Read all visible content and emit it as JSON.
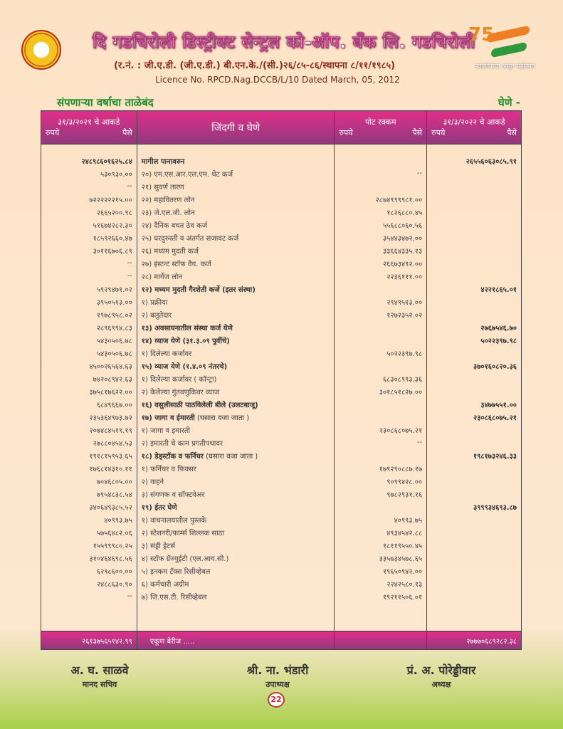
{
  "header": {
    "title": "दि गडचिरोली डिस्ट्रीक्ट सेन्ट्रल को-ऑप. बँक लि. गडचिरोली",
    "registration": "(र.नं. : जी.ए.डी. (जी.ए.डी.) बी.एन.के./(सी.)२६/८५-८६/स्थापना ८/११/१९८५)",
    "licence": "Licence No. RPCD.Nag.DCCB/L/10 Dated March, 05, 2012",
    "emblem_number": "75",
    "emblem_text": "स्वातंत्र्याचा अमृत महोत्सव"
  },
  "section": {
    "title": "संपणाऱ्या वर्षाचा ताळेबंद",
    "side": "घेणे -"
  },
  "columns": {
    "prev_year": "३१/३/२०२१ चे आकडे",
    "particulars": "जिंदगी व घेणे",
    "sub_amount": "पोट रक्कम",
    "cur_year": "३१/३/२०२२ चे आकडे",
    "rupees": "रुपये",
    "paise": "पैसे"
  },
  "rows": [
    {
      "prev": "२४८९८६०१६२५.८४",
      "desc": "मागील पानावरुन",
      "bold": true,
      "sub": "",
      "cur": "२६५५६०६३०८५.९१"
    },
    {
      "prev": "५३०९३०.००",
      "desc": "२०) एम.एस.आर.एल.एम. थेट कर्ज",
      "sub": "--",
      "cur": ""
    },
    {
      "prev": "--",
      "desc": "२१) सुवर्ण तारण",
      "sub": "",
      "cur": ""
    },
    {
      "prev": "७२२२२२२१५.००",
      "desc": "२२) महावितरण लोन",
      "sub": "२८७४९९९९८१.००",
      "cur": ""
    },
    {
      "prev": "२६६५२००.९८",
      "desc": "२३) जे.एल.जी. लोन",
      "sub": "१८२६८८०.४५",
      "cur": ""
    },
    {
      "prev": "५१६७४२८२.३०",
      "desc": "२४) दैनिक बचत ठेव कर्ज",
      "sub": "५५६८८०६०.५६",
      "cur": ""
    },
    {
      "prev": "१८५९२६६०.४७",
      "desc": "२५) घरदुरुस्ती व अंतर्गत सजावट कर्ज",
      "sub": "३५४४३४७२.००",
      "cur": ""
    },
    {
      "prev": "३०११६७०६.८९",
      "desc": "२६) मध्यम मुदती  कर्ज",
      "sub": "३३६६४३३५.१३",
      "cur": ""
    },
    {
      "prev": "--",
      "desc": "२७) इंस्टन्ट स्टॉफ वैय. कर्ज",
      "sub": "२६६७३४९२.००",
      "cur": ""
    },
    {
      "prev": "--",
      "desc": "२८) मार्गेज लोन",
      "sub": "२२३६१११.००",
      "cur": ""
    },
    {
      "prev": "५९२९४७१.०२",
      "desc": "१२) मध्यम मुदती गैरशेती कर्जे (इतर संस्था)",
      "bold": true,
      "sub": "",
      "cur": "४२२१८६५.०१"
    },
    {
      "prev": "३९५०५१३.००",
      "desc": "१) प्रक्रीया",
      "sub": "२९४९५१३.००",
      "cur": ""
    },
    {
      "prev": "१९७८९५८.०२",
      "desc": "२) बलुतेदार",
      "sub": "१२७२३५२.०२",
      "cur": ""
    },
    {
      "prev": "२८९६९९४.८३",
      "desc": "१३)  अवसायनातील संस्था कर्ज येणे",
      "bold": true,
      "sub": "",
      "cur": "२७६७५४६.७०"
    },
    {
      "prev": "५४३०५०६.७८",
      "desc": "१४) व्याज येणे (३१.३.०९ पुर्वीचे)",
      "bold": true,
      "sub": "",
      "cur": "५०२२३९७.९८"
    },
    {
      "prev": "५४३०५०६.७८",
      "desc": "१) दिलेल्या कर्जावर",
      "sub": "५०२२३९७.९८",
      "cur": ""
    },
    {
      "prev": "४५००२६५६४.६३",
      "desc": "१५) व्याज येणे  (१.४.०९ नंतरचे)",
      "bold": true,
      "sub": "",
      "cur": "३७०१६०८२०.३६"
    },
    {
      "prev": "७४२०८९४२.६३",
      "desc": "१) दिलेल्या कर्जावर ( कॉन्ट्रा)",
      "sub": "६८३०८९९३.३६",
      "cur": ""
    },
    {
      "prev": "३७५८१७६२२.००",
      "desc": "२) केलेल्या गुंतवणुकिवर व्याज",
      "sub": "३०१८५१८२७.००",
      "cur": ""
    },
    {
      "prev": "६८४९६६७.००",
      "desc": "१६) वसुलीसाठी पाठविलेली बीले (उलटबाजू)",
      "bold": true,
      "sub": "",
      "cur": "३४७७५५१.००"
    },
    {
      "prev": "२३५३६४९७३.७२",
      "desc": "१७) जागा व ईमारती",
      "note": " (घसारा वजा जाता )",
      "bold": true,
      "sub": "",
      "cur": "२३०८६८०७५.२१"
    },
    {
      "prev": "२०७४८४५१९.१९",
      "desc": "१) जागा व इमारती",
      "sub": "२३०८६८०७५.२१",
      "cur": ""
    },
    {
      "prev": "२७८८०४५४.५३",
      "desc": "२) इमारती चे काम प्रगतीपथावर",
      "sub": "--",
      "cur": ""
    },
    {
      "prev": "१९१८१५९५३.६५",
      "desc": "१८) डेड्स्टॉक व फर्निचर",
      "note": " (घसारा वजा जाता )",
      "bold": true,
      "sub": "",
      "cur": "१९८१७३२४६.३३"
    },
    {
      "prev": "१७६८१४३१०.११",
      "desc": "१) फर्निचर व फिक्सर",
      "sub": "१७९२९०८८७.१७",
      "cur": ""
    },
    {
      "prev": "७०४६८०५.००",
      "desc": "२) वाहने",
      "sub": "९०९९४२८.००",
      "cur": ""
    },
    {
      "prev": "७९५४८३८.५४",
      "desc": "३) संगणक व सॉफ्टवेअर",
      "sub": "९७८२९३१.१६",
      "cur": ""
    },
    {
      "prev": "३४०६४९३८५.५२",
      "desc": "१९) ईतर घेणे",
      "bold": true,
      "sub": "",
      "cur": "३९९९३४६९३.८७"
    },
    {
      "prev": "४०९९३.७५",
      "desc": "१) वाचनालयातील पुस्तके",
      "sub": "४०९९३.७५",
      "cur": ""
    },
    {
      "prev": "५७५६४८२.०६",
      "desc": "२) स्टेशनरी/फार्म्स शिल्लक साठा",
      "sub": "४९३४५४२.८८",
      "cur": ""
    },
    {
      "prev": "१५५९९९८०.२५",
      "desc": "३) संड्री ड्रेटर्स",
      "sub": "१८११९५५०.४५",
      "cur": ""
    },
    {
      "prev": "३१०४६४६९८.५६",
      "desc": "४) स्टॉफ ग्रॅज्युईटी (एल.आय.सी.)",
      "sub": "३३५७३४५७८.६५",
      "cur": ""
    },
    {
      "prev": "६२९८६००.००",
      "desc": "५) इनकम टॅक्स रिसीव्हेबल",
      "sub": "१९६५०९४२.००",
      "cur": ""
    },
    {
      "prev": "२४८८६३०.९०",
      "desc": "६) कर्मचारी अग्रीम",
      "sub": "२२४२५८०.१३",
      "cur": ""
    },
    {
      "prev": "--",
      "desc": "७) जि.एस.टी. रिसीव्हेबल",
      "sub": "१९२११५०६.०१",
      "cur": ""
    }
  ],
  "total": {
    "prev": "२६१३७५६५१४२.९९",
    "label": "एकूण बेरीज .....",
    "cur": "२७७७०६८९२८२.३८"
  },
  "signatories": [
    {
      "name": "अ. घ. साळवे",
      "role": "मानद सचिव"
    },
    {
      "name": "श्री. ना. भंडारी",
      "role": "उपाध्यक्ष"
    },
    {
      "name": "प्रं. अ. पोरेड्डीवार",
      "role": "अध्यक्ष"
    }
  ],
  "page_number": "22"
}
